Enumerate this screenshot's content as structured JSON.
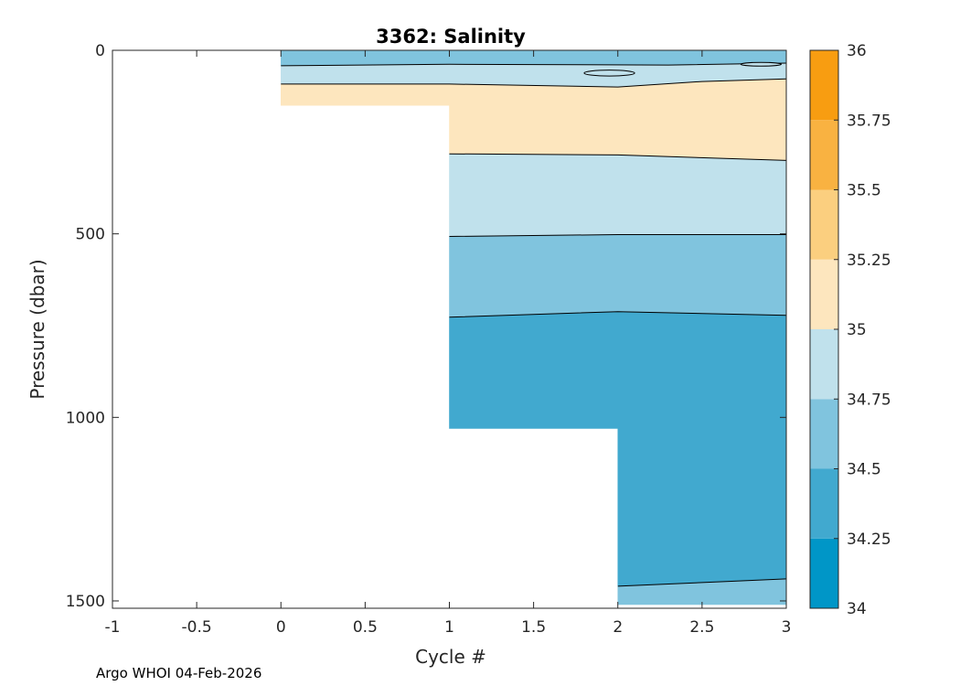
{
  "chart_data": {
    "type": "contour",
    "title": "3362:  Salinity",
    "xlabel": "Cycle #",
    "ylabel": "Pressure (dbar)",
    "xlim": [
      -1,
      3
    ],
    "ylim": [
      0,
      1520
    ],
    "y_reversed": true,
    "x_ticks": [
      -1,
      -0.5,
      0,
      0.5,
      1,
      1.5,
      2,
      2.5,
      3
    ],
    "x_tick_labels": [
      "-1",
      "-0.5",
      "0",
      "0.5",
      "1",
      "1.5",
      "2",
      "2.5",
      "3"
    ],
    "y_ticks": [
      0,
      500,
      1000,
      1500
    ],
    "y_tick_labels": [
      "0",
      "500",
      "1000",
      "1500"
    ],
    "colorbar": {
      "ticks": [
        34,
        34.25,
        34.5,
        34.75,
        35,
        35.25,
        35.5,
        35.75,
        36
      ],
      "tick_labels": [
        "34",
        "34.25",
        "34.5",
        "34.75",
        "35",
        "35.25",
        "35.5",
        "35.75",
        "36"
      ],
      "colors": [
        "#0096c7",
        "#41a9cf",
        "#80c4de",
        "#c0e1ec",
        "#fde6be",
        "#fbcf7f",
        "#f9b241",
        "#f89d11"
      ]
    },
    "data_extent": [
      {
        "cycle": 0,
        "max_pressure": 150
      },
      {
        "cycle": 1,
        "max_pressure": 1030
      },
      {
        "cycle": 2,
        "max_pressure": 1510
      },
      {
        "cycle": 3,
        "max_pressure": 1510
      }
    ],
    "regions": [
      {
        "salinity_band": "34.5-34.75",
        "color": "#80c4de",
        "points": [
          [
            0,
            0
          ],
          [
            3,
            0
          ],
          [
            3,
            35
          ],
          [
            2.3,
            40
          ],
          [
            1,
            38
          ],
          [
            0,
            42
          ]
        ]
      },
      {
        "salinity_band": "34.75-35",
        "color": "#c0e1ec",
        "points": [
          [
            0,
            42
          ],
          [
            1,
            38
          ],
          [
            2.3,
            40
          ],
          [
            3,
            35
          ],
          [
            3,
            78
          ],
          [
            2.5,
            85
          ],
          [
            2,
            100
          ],
          [
            1,
            92
          ],
          [
            0,
            92
          ]
        ]
      },
      {
        "salinity_band": "35-35.25",
        "color": "#fde6be",
        "points": [
          [
            0,
            92
          ],
          [
            1,
            92
          ],
          [
            2,
            100
          ],
          [
            2.5,
            85
          ],
          [
            3,
            78
          ],
          [
            3,
            300
          ],
          [
            2,
            285
          ],
          [
            1,
            282
          ],
          [
            1,
            150
          ],
          [
            0,
            150
          ]
        ]
      },
      {
        "salinity_band": "34.75-35",
        "color": "#c0e1ec",
        "points": [
          [
            1,
            282
          ],
          [
            2,
            285
          ],
          [
            3,
            300
          ],
          [
            3,
            502
          ],
          [
            2,
            502
          ],
          [
            1,
            507
          ]
        ]
      },
      {
        "salinity_band": "34.5-34.75",
        "color": "#80c4de",
        "points": [
          [
            1,
            507
          ],
          [
            2,
            502
          ],
          [
            3,
            502
          ],
          [
            3,
            722
          ],
          [
            2,
            712
          ],
          [
            1,
            727
          ]
        ]
      },
      {
        "salinity_band": "34.25-34.5",
        "color": "#41a9cf",
        "points": [
          [
            1,
            727
          ],
          [
            2,
            712
          ],
          [
            3,
            722
          ],
          [
            3,
            1440
          ],
          [
            2.5,
            1450
          ],
          [
            2,
            1460
          ],
          [
            2,
            1030
          ],
          [
            1,
            1030
          ]
        ]
      },
      {
        "salinity_band": "34.5-34.75",
        "color": "#80c4de",
        "points": [
          [
            2,
            1460
          ],
          [
            2.5,
            1450
          ],
          [
            3,
            1440
          ],
          [
            3,
            1510
          ],
          [
            2,
            1510
          ]
        ]
      }
    ],
    "contours": [
      {
        "level": 34.75,
        "points": [
          [
            0,
            42
          ],
          [
            1,
            38
          ],
          [
            2.3,
            40
          ],
          [
            3,
            35
          ]
        ]
      },
      {
        "level": 35,
        "points": [
          [
            0,
            92
          ],
          [
            1,
            92
          ],
          [
            2,
            100
          ],
          [
            2.5,
            85
          ],
          [
            3,
            78
          ]
        ]
      },
      {
        "level": 35,
        "points": [
          [
            1,
            282
          ],
          [
            2,
            285
          ],
          [
            3,
            300
          ]
        ]
      },
      {
        "level": 34.75,
        "points": [
          [
            1,
            507
          ],
          [
            2,
            502
          ],
          [
            3,
            502
          ]
        ]
      },
      {
        "level": 34.5,
        "points": [
          [
            1,
            727
          ],
          [
            2,
            712
          ],
          [
            3,
            722
          ]
        ]
      },
      {
        "level": 34.5,
        "points": [
          [
            2,
            1460
          ],
          [
            2.5,
            1450
          ],
          [
            3,
            1440
          ]
        ]
      }
    ],
    "closed_contours": [
      {
        "level": 34.75,
        "center": [
          1.95,
          62
        ],
        "radius_cycle": 0.15,
        "radius_dbar": 8
      },
      {
        "level": 34.75,
        "center": [
          2.85,
          38
        ],
        "radius_cycle": 0.12,
        "radius_dbar": 5
      }
    ]
  },
  "footer": "Argo WHOI 04-Feb-2026"
}
